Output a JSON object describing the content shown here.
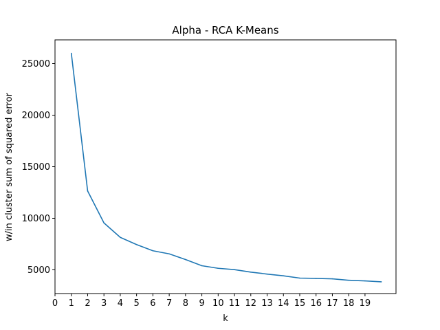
{
  "chart_data": {
    "type": "line",
    "title": "Alpha - RCA K-Means",
    "xlabel": "k",
    "ylabel": "w/in cluster sum of squared error",
    "xlim": [
      0,
      20.9
    ],
    "ylim": [
      2700,
      27300
    ],
    "xticks": [
      0,
      1,
      2,
      3,
      4,
      5,
      6,
      7,
      8,
      9,
      10,
      11,
      12,
      13,
      14,
      15,
      16,
      17,
      18,
      19
    ],
    "yticks": [
      5000,
      10000,
      15000,
      20000,
      25000
    ],
    "grid": false,
    "series": [
      {
        "color": "#1f77b4",
        "x": [
          1,
          2,
          3,
          4,
          5,
          6,
          7,
          8,
          9,
          10,
          11,
          12,
          13,
          14,
          15,
          16,
          17,
          18,
          19,
          20
        ],
        "y": [
          26000,
          12650,
          9550,
          8150,
          7450,
          6850,
          6550,
          6000,
          5400,
          5150,
          5020,
          4780,
          4590,
          4420,
          4200,
          4170,
          4130,
          3990,
          3930,
          3840
        ]
      }
    ]
  }
}
